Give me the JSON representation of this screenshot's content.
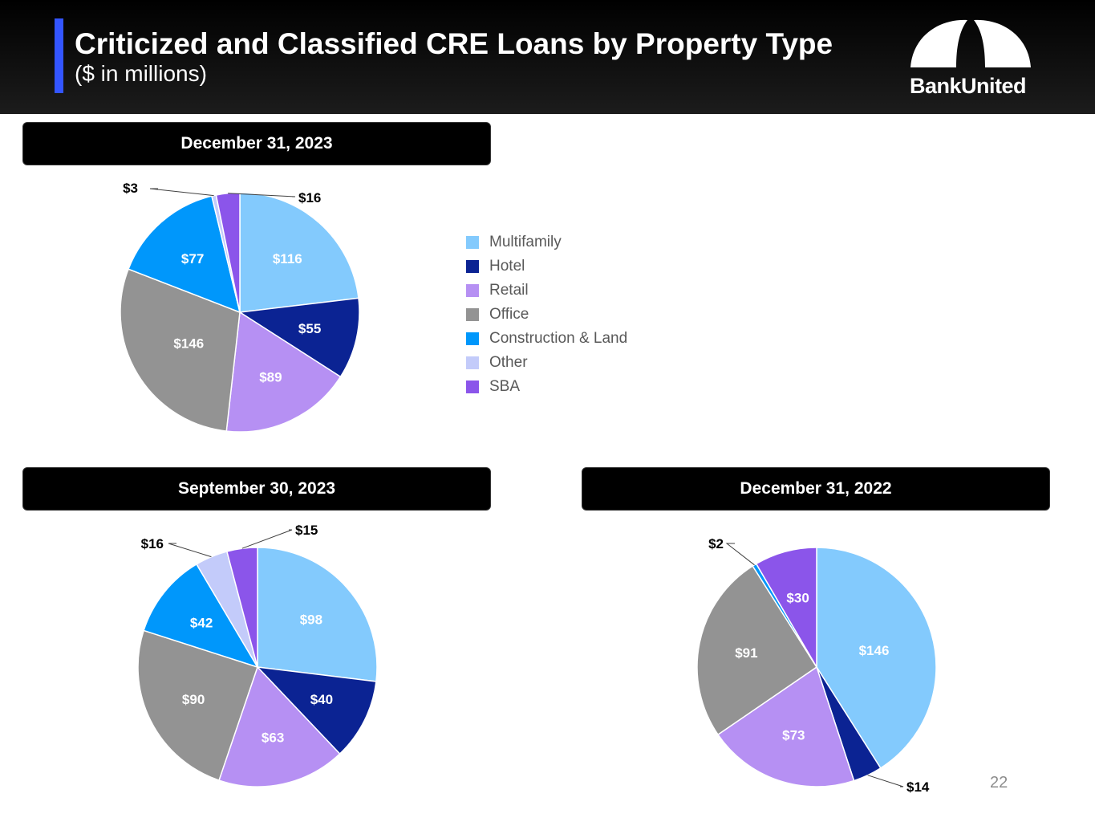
{
  "header": {
    "title": "Criticized and Classified CRE Loans by Property Type",
    "subtitle": "($ in millions)",
    "logo_text": "BankUnited",
    "accent_color": "#3355ff"
  },
  "legend": {
    "items": [
      {
        "label": "Multifamily",
        "color": "#83cafd"
      },
      {
        "label": "Hotel",
        "color": "#0b2393"
      },
      {
        "label": "Retail",
        "color": "#b690f3"
      },
      {
        "label": "Office",
        "color": "#939393"
      },
      {
        "label": "Construction & Land",
        "color": "#0097fb"
      },
      {
        "label": "Other",
        "color": "#c3cbfa"
      },
      {
        "label": "SBA",
        "color": "#8b55ea"
      }
    ]
  },
  "chart_data": [
    {
      "type": "pie",
      "title": "December 31, 2023",
      "categories": [
        "Multifamily",
        "Hotel",
        "Retail",
        "Office",
        "Construction & Land",
        "Other",
        "SBA"
      ],
      "values": [
        116,
        55,
        89,
        146,
        77,
        3,
        16
      ],
      "labels": [
        "$116",
        "$55",
        "$89",
        "$146",
        "$77",
        "$3",
        "$16"
      ],
      "callouts": [
        "Other",
        "SBA"
      ]
    },
    {
      "type": "pie",
      "title": "September 30, 2023",
      "categories": [
        "Multifamily",
        "Hotel",
        "Retail",
        "Office",
        "Construction & Land",
        "Other",
        "SBA"
      ],
      "values": [
        98,
        40,
        63,
        90,
        42,
        16,
        15
      ],
      "labels": [
        "$98",
        "$40",
        "$63",
        "$90",
        "$42",
        "$16",
        "$15"
      ],
      "callouts": [
        "Other",
        "SBA"
      ]
    },
    {
      "type": "pie",
      "title": "December 31, 2022",
      "categories": [
        "Multifamily",
        "Hotel",
        "Retail",
        "Office",
        "Construction & Land",
        "Other",
        "SBA"
      ],
      "values": [
        146,
        14,
        73,
        91,
        2,
        0,
        30
      ],
      "labels": [
        "$146",
        "$14",
        "$73",
        "$91",
        "$2",
        "",
        "$30"
      ],
      "callouts": [
        "Hotel",
        "Construction & Land"
      ]
    }
  ],
  "page_number": "22"
}
